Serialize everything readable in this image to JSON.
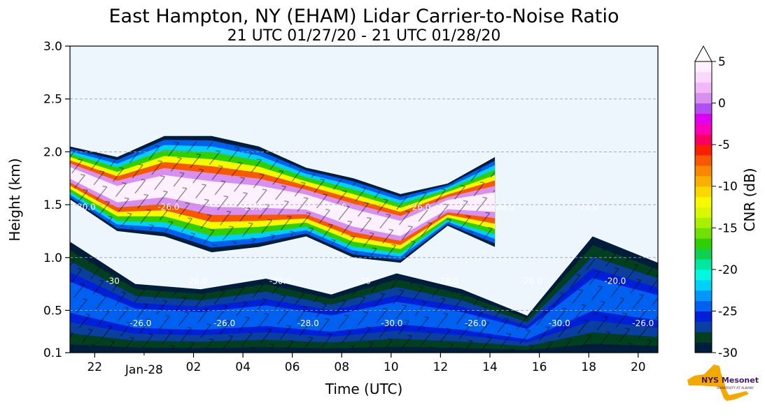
{
  "chart_data": {
    "type": "heatmap",
    "title": "East Hampton, NY (EHAM) Lidar Carrier-to-Noise Ratio",
    "subtitle": "21 UTC 01/27/20 - 21 UTC 01/28/20",
    "xlabel": "Time (UTC)",
    "ylabel": "Height (km)",
    "x_range_hours": [
      21,
      44.8
    ],
    "x_ticks": [
      {
        "hour": 22,
        "label": "22"
      },
      {
        "hour": 26,
        "label": "02"
      },
      {
        "hour": 28,
        "label": "04"
      },
      {
        "hour": 30,
        "label": "06"
      },
      {
        "hour": 32,
        "label": "08"
      },
      {
        "hour": 34,
        "label": "10"
      },
      {
        "hour": 36,
        "label": "12"
      },
      {
        "hour": 38,
        "label": "14"
      },
      {
        "hour": 40,
        "label": "16"
      },
      {
        "hour": 42,
        "label": "18"
      },
      {
        "hour": 44,
        "label": "20"
      }
    ],
    "x_date_label": {
      "hour": 24,
      "label": "Jan-28"
    },
    "ylim": [
      0.1,
      3.0
    ],
    "y_ticks": [
      {
        "value": 0.1,
        "label": "0.1"
      },
      {
        "value": 0.5,
        "label": "0.5"
      },
      {
        "value": 1.0,
        "label": "1.0"
      },
      {
        "value": 1.5,
        "label": "1.5"
      },
      {
        "value": 2.0,
        "label": "2.0"
      },
      {
        "value": 2.5,
        "label": "2.5"
      },
      {
        "value": 3.0,
        "label": "3.0"
      }
    ],
    "grid": "horizontal dashed",
    "background_color": "#eef6fd",
    "colorbar": {
      "label": "CNR (dB)",
      "range": [
        -30,
        5
      ],
      "ticks": [
        {
          "value": 5,
          "label": "5"
        },
        {
          "value": 0,
          "label": "0"
        },
        {
          "value": -5,
          "label": "-5"
        },
        {
          "value": -10,
          "label": "-10"
        },
        {
          "value": -15,
          "label": "-15"
        },
        {
          "value": -20,
          "label": "-20"
        },
        {
          "value": -25,
          "label": "-25"
        },
        {
          "value": -30,
          "label": "-30"
        }
      ],
      "colors": [
        "#001e3c",
        "#004020",
        "#0a3fa0",
        "#0020d8",
        "#0060f0",
        "#0098f8",
        "#00d0f8",
        "#00f8e0",
        "#00e8a0",
        "#10d050",
        "#30d000",
        "#70e000",
        "#a8f000",
        "#d8f800",
        "#f8f800",
        "#f8d800",
        "#f8b000",
        "#f88800",
        "#f85800",
        "#f82000",
        "#f80060",
        "#f800b8",
        "#e000f0",
        "#b050f0",
        "#d890f0",
        "#f0b8f8",
        "#fad8fc",
        "#fff0ff"
      ]
    },
    "cnr_layers": [
      {
        "name": "main cloud layer",
        "start_hour": 21,
        "end_hour": 38.2,
        "base_km": [
          1.55,
          1.25,
          1.2,
          1.05,
          1.1,
          1.2,
          1.0,
          0.95,
          1.3,
          1.1
        ],
        "top_km": [
          2.05,
          1.95,
          2.15,
          2.15,
          2.05,
          1.85,
          1.75,
          1.6,
          1.7,
          1.95
        ]
      },
      {
        "name": "lower boundary layer",
        "start_hour": 21,
        "end_hour": 44.8,
        "base_km": [
          0.1,
          0.1,
          0.1,
          0.1,
          0.1,
          0.1,
          0.1,
          0.1,
          0.1,
          0.1
        ],
        "top_km": [
          1.15,
          0.75,
          0.7,
          0.8,
          0.65,
          0.85,
          0.7,
          0.45,
          1.2,
          0.95
        ]
      }
    ],
    "contour_labels": [
      "-30.0",
      "-30",
      "-26.0",
      "-26.0",
      "-26.0",
      "-26.0",
      "-26.0",
      "-30.0",
      "-28.0",
      "-20.0",
      "-26",
      "-30.0",
      "-26.0",
      "-28.0",
      "-26.0",
      "-26.0",
      "-26.0",
      "-30.0",
      "-26.0",
      "-20.0",
      "-26.0"
    ]
  },
  "logo": {
    "text": "NYS Mesonet",
    "subtext": "UNIVERSITY AT ALBANY",
    "colors": {
      "state": "#f2a900",
      "text": "#46166b"
    }
  }
}
